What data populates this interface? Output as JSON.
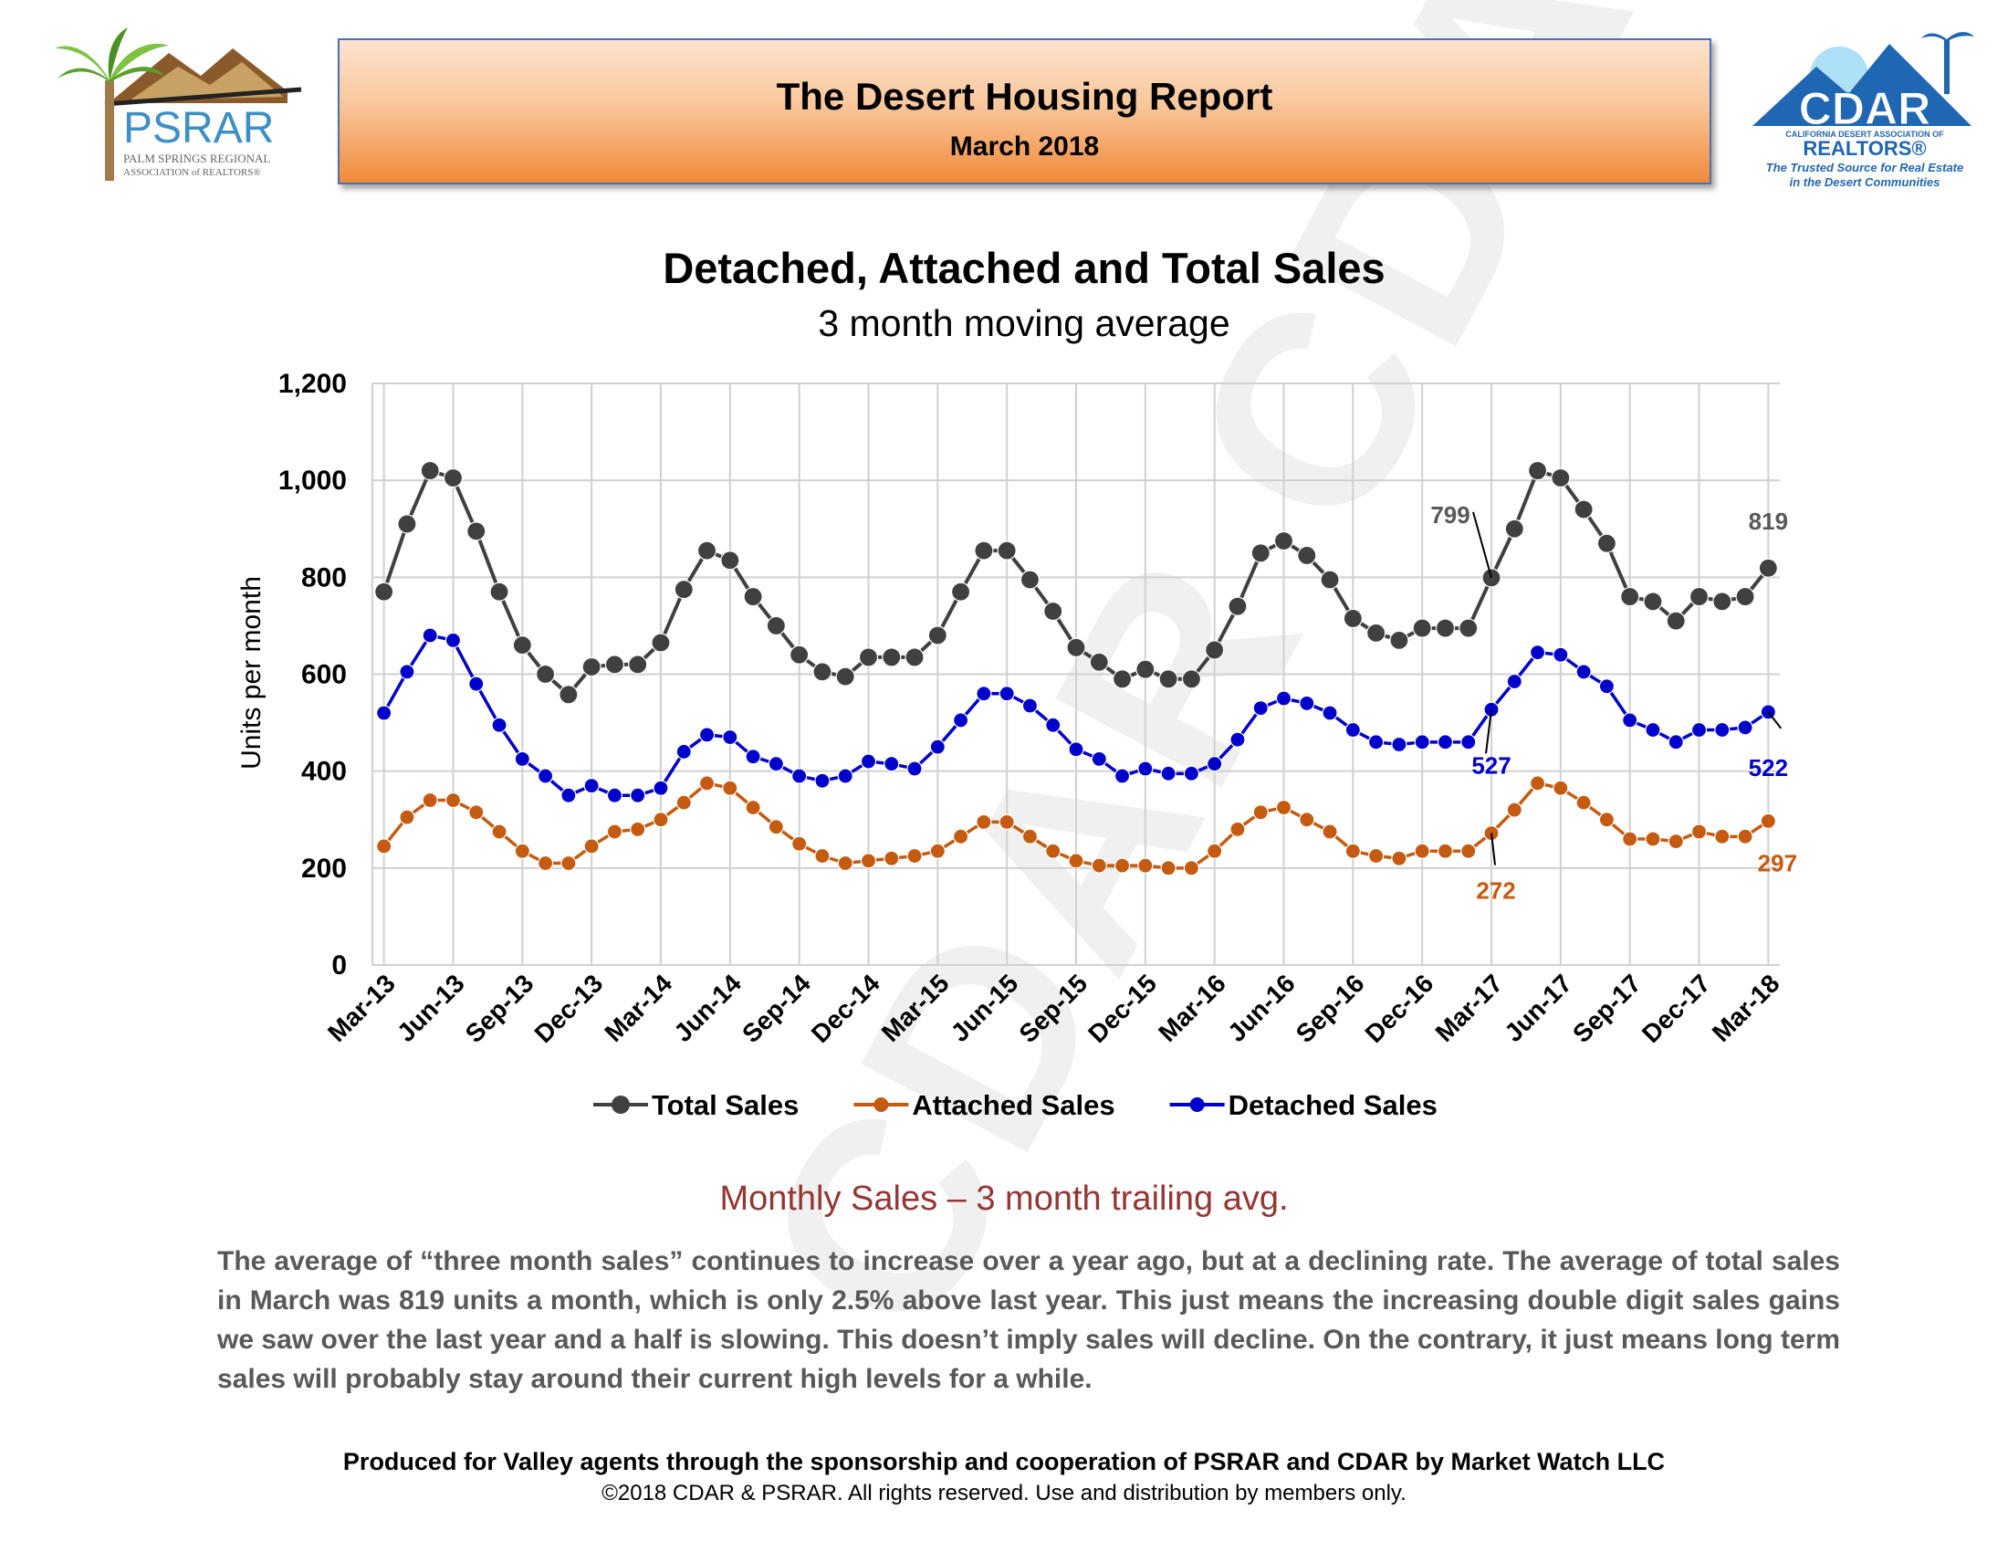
{
  "header": {
    "title": "The Desert Housing Report",
    "date": "March 2018"
  },
  "logos": {
    "left": {
      "name": "PSRAR",
      "subtitle1": "PALM SPRINGS REGIONAL",
      "subtitle2": "ASSOCIATION of REALTORS®"
    },
    "right": {
      "name": "CDAR",
      "subtitle1": "CALIFORNIA DESERT ASSOCIATION OF",
      "subtitle2": "REALTORS®",
      "tagline1": "The Trusted Source for Real Estate",
      "tagline2": "in the Desert Communities"
    }
  },
  "watermark_text": "CDAR CDAR",
  "colors": {
    "total": "#404040",
    "attached": "#c55a11",
    "detached": "#0000cc",
    "caption": "#943634",
    "body_text": "#595959"
  },
  "chart_data": {
    "type": "line",
    "title": "Detached, Attached and Total Sales",
    "subtitle": "3 month moving average",
    "xlabel": "",
    "ylabel": "Units per month",
    "ylim": [
      0,
      1200
    ],
    "yticks": [
      0,
      200,
      400,
      600,
      800,
      1000,
      1200
    ],
    "ytick_labels": [
      "0",
      "200",
      "400",
      "600",
      "800",
      "1,000",
      "1,200"
    ],
    "grid": true,
    "legend_position": "bottom",
    "x_tick_labels": [
      "Mar-13",
      "Jun-13",
      "Sep-13",
      "Dec-13",
      "Mar-14",
      "Jun-14",
      "Sep-14",
      "Dec-14",
      "Mar-15",
      "Jun-15",
      "Sep-15",
      "Dec-15",
      "Mar-16",
      "Jun-16",
      "Sep-16",
      "Dec-16",
      "Mar-17",
      "Jun-17",
      "Sep-17",
      "Dec-17",
      "Mar-18"
    ],
    "series": [
      {
        "name": "Total Sales",
        "color": "#404040",
        "values": [
          770,
          910,
          1020,
          1005,
          895,
          770,
          660,
          600,
          558,
          615,
          620,
          620,
          665,
          775,
          855,
          835,
          760,
          700,
          640,
          605,
          595,
          635,
          635,
          635,
          680,
          770,
          855,
          855,
          795,
          730,
          655,
          625,
          590,
          610,
          590,
          590,
          650,
          740,
          850,
          875,
          845,
          795,
          715,
          685,
          670,
          695,
          695,
          695,
          799,
          900,
          1020,
          1005,
          940,
          870,
          760,
          750,
          710,
          760,
          750,
          760,
          819
        ]
      },
      {
        "name": "Attached Sales",
        "color": "#c55a11",
        "values": [
          245,
          305,
          340,
          340,
          315,
          275,
          235,
          210,
          210,
          245,
          275,
          280,
          300,
          335,
          375,
          365,
          325,
          285,
          250,
          225,
          210,
          215,
          220,
          225,
          235,
          265,
          295,
          295,
          265,
          235,
          215,
          205,
          205,
          205,
          200,
          200,
          235,
          280,
          315,
          325,
          300,
          275,
          235,
          225,
          220,
          235,
          235,
          235,
          272,
          320,
          375,
          365,
          335,
          300,
          260,
          260,
          255,
          275,
          265,
          265,
          297
        ]
      },
      {
        "name": "Detached Sales",
        "color": "#0000cc",
        "values": [
          520,
          605,
          680,
          670,
          580,
          495,
          425,
          390,
          350,
          370,
          350,
          350,
          365,
          440,
          475,
          470,
          430,
          415,
          390,
          380,
          390,
          420,
          415,
          405,
          450,
          505,
          560,
          560,
          535,
          495,
          445,
          425,
          390,
          405,
          395,
          395,
          415,
          465,
          530,
          550,
          540,
          520,
          485,
          460,
          455,
          460,
          460,
          460,
          527,
          585,
          645,
          640,
          605,
          575,
          505,
          485,
          460,
          485,
          485,
          490,
          522
        ]
      }
    ],
    "annotations": [
      {
        "series": "Total Sales",
        "label": "799",
        "x": "Mar-17",
        "value": 799
      },
      {
        "series": "Total Sales",
        "label": "819",
        "x": "Mar-18",
        "value": 819
      },
      {
        "series": "Detached Sales",
        "label": "527",
        "x": "Mar-17",
        "value": 527
      },
      {
        "series": "Detached Sales",
        "label": "522",
        "x": "Mar-18",
        "value": 522
      },
      {
        "series": "Attached Sales",
        "label": "272",
        "x": "Mar-17",
        "value": 272
      },
      {
        "series": "Attached Sales",
        "label": "297",
        "x": "Mar-18",
        "value": 297
      }
    ]
  },
  "caption": "Monthly Sales – 3 month trailing avg.",
  "paragraph": "The average of “three month sales” continues to increase over a year ago, but at a declining rate. The average of total sales in March was 819 units a month, which is only 2.5% above last year. This just means the increasing double digit sales gains we saw over the last year and a half is slowing. This doesn’t imply sales will decline. On the contrary, it just means long term sales will probably stay around their current high levels for a while.",
  "footer": {
    "line1": "Produced for Valley agents through the sponsorship and cooperation of PSRAR and CDAR by Market Watch LLC",
    "line2": "©2018 CDAR & PSRAR.  All rights reserved.  Use and distribution by members only."
  }
}
